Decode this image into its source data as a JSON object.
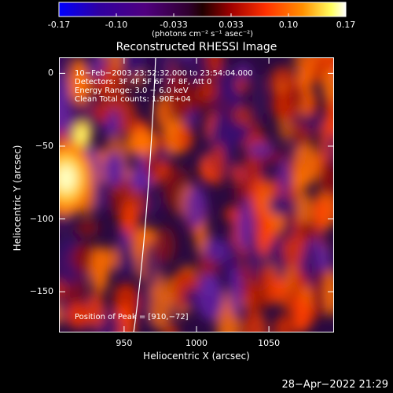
{
  "colorbar": {
    "ticks": [
      "-0.17",
      "-0.10",
      "-0.033",
      "0.033",
      "0.10",
      "0.17"
    ],
    "units": "(photons cm⁻² s⁻¹ asec⁻²)",
    "range": [
      -0.17,
      0.17
    ],
    "colormap": [
      "#0000ff",
      "#400080",
      "#000000",
      "#800000",
      "#ff4000",
      "#ffa000",
      "#ffff00",
      "#ffffff"
    ]
  },
  "chart_data": {
    "type": "heatmap",
    "title": "Reconstructed RHESSI Image",
    "xlabel": "Heliocentric X (arcsec)",
    "ylabel": "Heliocentric Y (arcsec)",
    "xlim": [
      905,
      1095
    ],
    "ylim": [
      -178,
      11
    ],
    "xticks": [
      "950",
      "1000",
      "1050"
    ],
    "yticks": [
      "0",
      "−50",
      "−100",
      "−150"
    ],
    "peak": [
      910,
      -72
    ],
    "limb_visible": true
  },
  "annotations": {
    "line1": "10−Feb−2003 23:52:32.000 to 23:54:04.000",
    "line2": "Detectors: 3F 4F 5F 6F 7F 8F, Att 0",
    "line3": "Energy Range: 3.0 − 6.0 keV",
    "line4": "Clean    Total counts: 1.90E+04",
    "peak_text": "Position of Peak = [910,−72]"
  },
  "footer": {
    "date": "28−Apr−2022 21:29"
  }
}
